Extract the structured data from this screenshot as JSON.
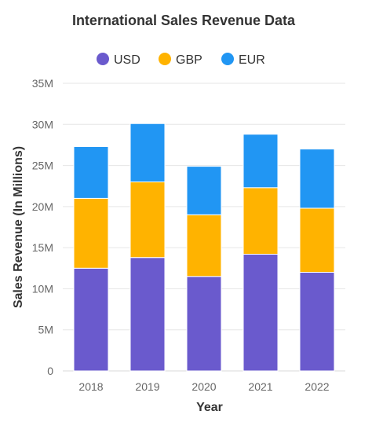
{
  "chart_data": {
    "type": "bar",
    "stacked": true,
    "title": "International Sales Revenue Data",
    "xlabel": "Year",
    "ylabel": "Sales Revenue (In Millions)",
    "categories": [
      "2018",
      "2019",
      "2020",
      "2021",
      "2022"
    ],
    "series": [
      {
        "name": "USD",
        "color": "#6a5acd",
        "values": [
          12.5,
          13.8,
          11.5,
          14.2,
          12.0
        ]
      },
      {
        "name": "GBP",
        "color": "#ffb300",
        "values": [
          8.5,
          9.2,
          7.5,
          8.1,
          7.8
        ]
      },
      {
        "name": "EUR",
        "color": "#2196f3",
        "values": [
          6.3,
          7.1,
          5.9,
          6.5,
          7.2
        ]
      }
    ],
    "yticks": [
      "0",
      "5M",
      "10M",
      "15M",
      "20M",
      "25M",
      "30M",
      "35M"
    ],
    "ylim": [
      0,
      35
    ],
    "grid": true,
    "legend": "top-center"
  }
}
